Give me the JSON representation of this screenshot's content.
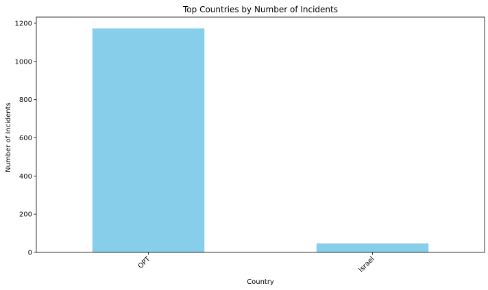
{
  "chart_data": {
    "type": "bar",
    "title": "Top Countries by Number of Incidents",
    "xlabel": "Country",
    "ylabel": "Number of Incidents",
    "categories": [
      "OPT",
      "Israel"
    ],
    "values": [
      1173,
      47
    ],
    "ylim": [
      0,
      1232
    ],
    "yticks": [
      0,
      200,
      400,
      600,
      800,
      1000,
      1200
    ],
    "grid": false,
    "legend": "none",
    "bar_color": "#87ceeb",
    "xtick_rotation": 45
  }
}
